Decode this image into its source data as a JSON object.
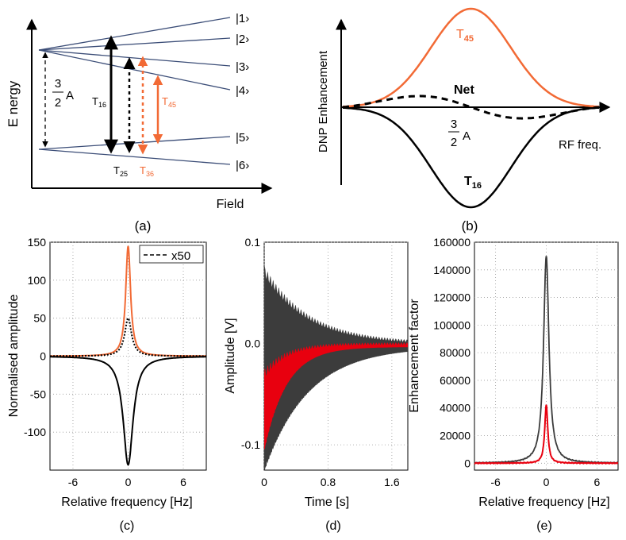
{
  "colors": {
    "orange": "#f26a35",
    "navy": "#3b4d77",
    "red": "#e8000f",
    "dark": "#3c3c3c",
    "grid": "#9a9a9a",
    "black": "#000000"
  },
  "panel_a": {
    "caption": "(a)",
    "y_label": "E nergy",
    "x_label": "Field",
    "levels": [
      "|1›",
      "|2›",
      "|3›",
      "|4›",
      "|5›",
      "|6›"
    ],
    "frac_num": "3",
    "frac_den": "2",
    "frac_sym": "A",
    "t16": {
      "base": "T",
      "sub": "16"
    },
    "t25": {
      "base": "T",
      "sub": "25"
    },
    "t36": {
      "base": "T",
      "sub": "36"
    },
    "t45": {
      "base": "T",
      "sub": "45"
    }
  },
  "panel_b": {
    "caption": "(b)",
    "y_label": "DNP Enhancement",
    "t45": {
      "base": "T",
      "sub": "45"
    },
    "net": "Net",
    "frac_num": "3",
    "frac_den": "2",
    "frac_sym": "A",
    "rf": "RF freq.",
    "t16": {
      "base": "T",
      "sub": "16"
    }
  },
  "chart_data": [
    {
      "id": "c",
      "type": "line",
      "caption": "(c)",
      "ylabel": "Normalised amplitude",
      "xlabel": "Relative frequency [Hz]",
      "xlim": [
        -8.5,
        8.5
      ],
      "ylim": [
        -150,
        150
      ],
      "xticks": [
        -6,
        0,
        6
      ],
      "yticks": [
        150,
        100,
        50,
        0,
        -50,
        -100
      ],
      "grid": true,
      "legend": {
        "label": "x50",
        "position": "top-right"
      },
      "series": [
        {
          "name": "orange",
          "style": "solid",
          "shape": "lorentzian",
          "center": 0,
          "peak": 145,
          "hwhm": 0.32
        },
        {
          "name": "black dotted (x50)",
          "style": "dotted",
          "shape": "lorentzian",
          "center": 0,
          "peak": 50,
          "hwhm": 0.45
        },
        {
          "name": "black",
          "style": "solid",
          "shape": "lorentzian",
          "center": 0,
          "peak": -143,
          "hwhm": 0.65
        }
      ]
    },
    {
      "id": "d",
      "type": "area",
      "caption": "(d)",
      "ylabel": "Amplitude [V]",
      "xlabel": "Time [s]",
      "xlim": [
        0,
        1.8
      ],
      "ylim": [
        -0.125,
        0.1
      ],
      "xticks": [
        0.0,
        0.8,
        1.6
      ],
      "ytick_labels": [
        "0.1",
        "0.0",
        "-0.1"
      ],
      "yticks": [
        0.1,
        0.0,
        -0.1
      ],
      "grid": true,
      "series": [
        {
          "name": "dark envelope",
          "upper_start": 0.072,
          "lower_start": -0.12,
          "decay": 0.55,
          "upper_end": 0.0
        },
        {
          "name": "red envelope",
          "upper_start": -0.03,
          "lower_start": -0.1,
          "decay": 0.28,
          "upper_end": 0.0
        }
      ]
    },
    {
      "id": "e",
      "type": "line",
      "caption": "(e)",
      "ylabel": "Enhancement factor",
      "xlabel": "Relative frequency [Hz]",
      "xlim": [
        -8.5,
        8.5
      ],
      "ylim": [
        -5000,
        160000
      ],
      "xticks": [
        -6,
        0,
        6
      ],
      "yticks": [
        160000,
        140000,
        120000,
        100000,
        80000,
        60000,
        40000,
        20000,
        0
      ],
      "grid": true,
      "series": [
        {
          "name": "grey",
          "shape": "lorentzian",
          "center": 0,
          "peak": 150000,
          "hwhm": 0.38
        },
        {
          "name": "red",
          "shape": "lorentzian",
          "center": 0,
          "peak": 42000,
          "hwhm": 0.22
        }
      ]
    }
  ]
}
